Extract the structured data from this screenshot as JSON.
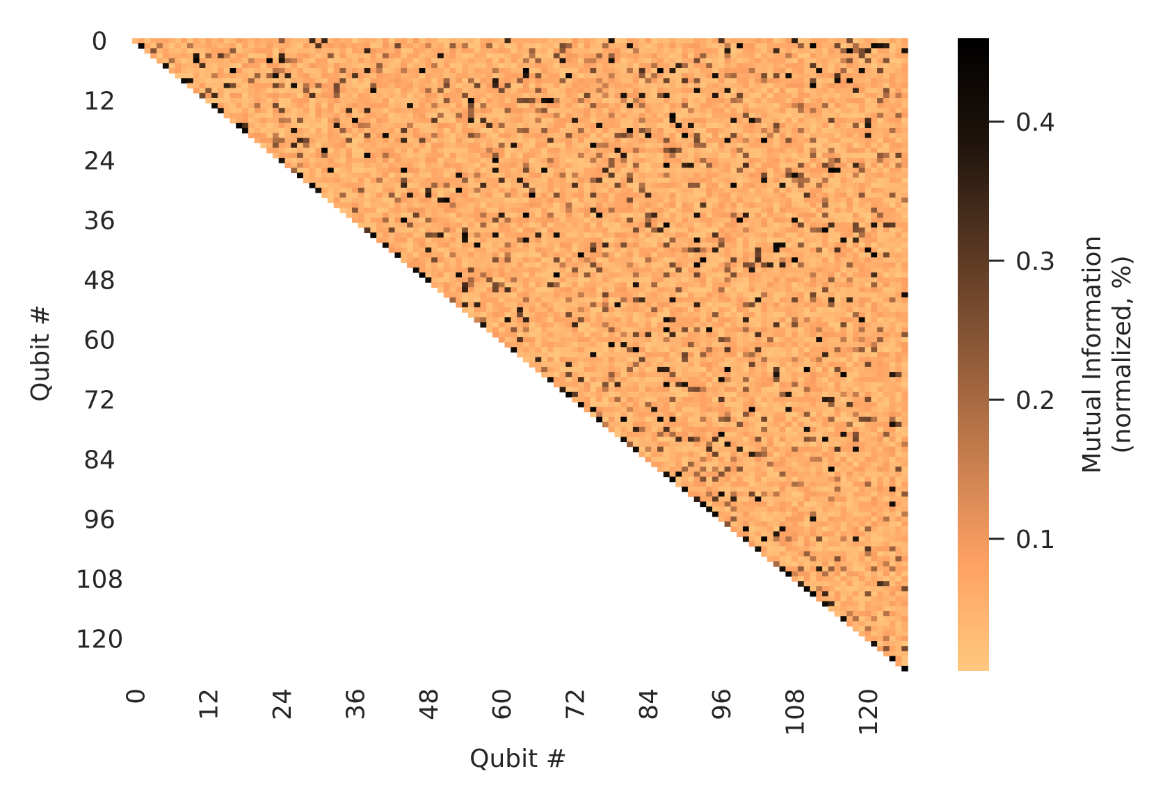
{
  "chart_data": {
    "type": "heatmap",
    "title": "",
    "xlabel": "Qubit #",
    "ylabel": "Qubit #",
    "n_qubits": 127,
    "mask": "lower-triangle (cells with column < row are blank)",
    "x_tick_labels": [
      "0",
      "12",
      "24",
      "36",
      "48",
      "60",
      "72",
      "84",
      "96",
      "108",
      "120"
    ],
    "y_tick_labels": [
      "0",
      "12",
      "24",
      "36",
      "48",
      "60",
      "72",
      "84",
      "96",
      "108",
      "120"
    ],
    "tick_values": [
      0,
      12,
      24,
      36,
      48,
      60,
      72,
      84,
      96,
      108,
      120
    ],
    "colorbar": {
      "label_line1": "Mutual Information",
      "label_line2": "(normalized, %)",
      "vmin": 0.005,
      "vmax": 0.46,
      "tick_values": [
        0.1,
        0.2,
        0.3,
        0.4
      ],
      "tick_labels": [
        "0.1",
        "0.2",
        "0.3",
        "0.4"
      ],
      "colormap": "copper_r",
      "colormap_stops": [
        "#ffc87f",
        "#ffa264",
        "#c77e4e",
        "#8f5a38",
        "#583722",
        "#1f140c",
        "#000000"
      ]
    },
    "value_distribution": "mostly low values (~0.02-0.10) with scattered high-value cells (>0.3), denser toward the diagonal and lower-right"
  }
}
